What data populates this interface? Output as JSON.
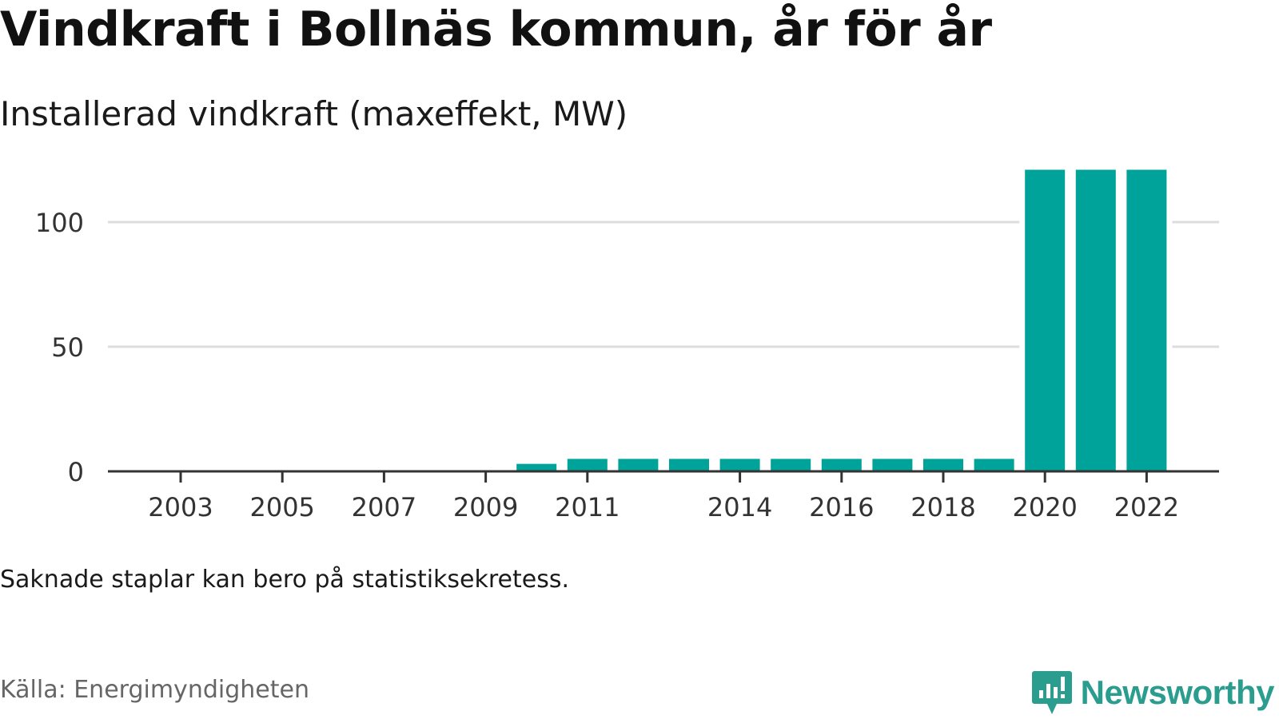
{
  "header": {
    "title": "Vindkraft i Bollnäs kommun, år för år",
    "subtitle": "Installerad vindkraft (maxeffekt, MW)"
  },
  "footer": {
    "note": "Saknade staplar kan bero på statistiksekretess.",
    "source": "Källa: Energimyndigheten",
    "brand": "Newsworthy",
    "brand_icon": "newsworthy-logo-icon"
  },
  "colors": {
    "bar": "#00a39a",
    "grid": "#dddddd",
    "axis": "#333333",
    "brand": "#2a9d8f"
  },
  "chart_data": {
    "type": "bar",
    "title": "Vindkraft i Bollnäs kommun, år för år",
    "subtitle": "Installerad vindkraft (maxeffekt, MW)",
    "xlabel": "",
    "ylabel": "",
    "categories": [
      "2003",
      "2004",
      "2005",
      "2006",
      "2007",
      "2008",
      "2009",
      "2010",
      "2011",
      "2012",
      "2013",
      "2014",
      "2015",
      "2016",
      "2017",
      "2018",
      "2019",
      "2020",
      "2021",
      "2022"
    ],
    "x_tick_labels": [
      "2003",
      "2005",
      "2007",
      "2009",
      "2011",
      "2014",
      "2016",
      "2018",
      "2020",
      "2022"
    ],
    "values": [
      0,
      0,
      0,
      0,
      0,
      0,
      0,
      3,
      5,
      5,
      5,
      5,
      5,
      5,
      5,
      5,
      5,
      121,
      121,
      121
    ],
    "ylim": [
      0,
      125
    ],
    "y_ticks": [
      0,
      50,
      100
    ],
    "grid": true,
    "legend": "none"
  }
}
